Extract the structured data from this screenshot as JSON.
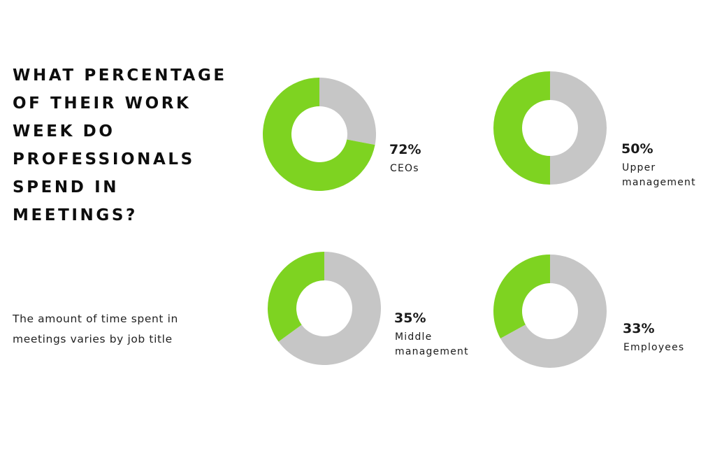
{
  "headline": [
    "WHAT PERCENTAGE",
    "OF THEIR WORK",
    "WEEK DO",
    "PROFESSIONALS",
    "SPEND IN",
    "MEETINGS?"
  ],
  "subtitle": [
    "The amount of time spent in",
    "meetings varies by job title"
  ],
  "colors": {
    "accent": "#7ed321",
    "remainder": "#c6c6c6",
    "text": "#111111"
  },
  "chart_data": [
    {
      "type": "pie",
      "variant": "donut",
      "category": [
        "CEOs"
      ],
      "value": 72,
      "display": "72%"
    },
    {
      "type": "pie",
      "variant": "donut",
      "category": [
        "Upper",
        "management"
      ],
      "value": 50,
      "display": "50%"
    },
    {
      "type": "pie",
      "variant": "donut",
      "category": [
        "Middle",
        "management"
      ],
      "value": 35,
      "display": "35%"
    },
    {
      "type": "pie",
      "variant": "donut",
      "category": [
        "Employees"
      ],
      "value": 33,
      "display": "33%"
    }
  ]
}
